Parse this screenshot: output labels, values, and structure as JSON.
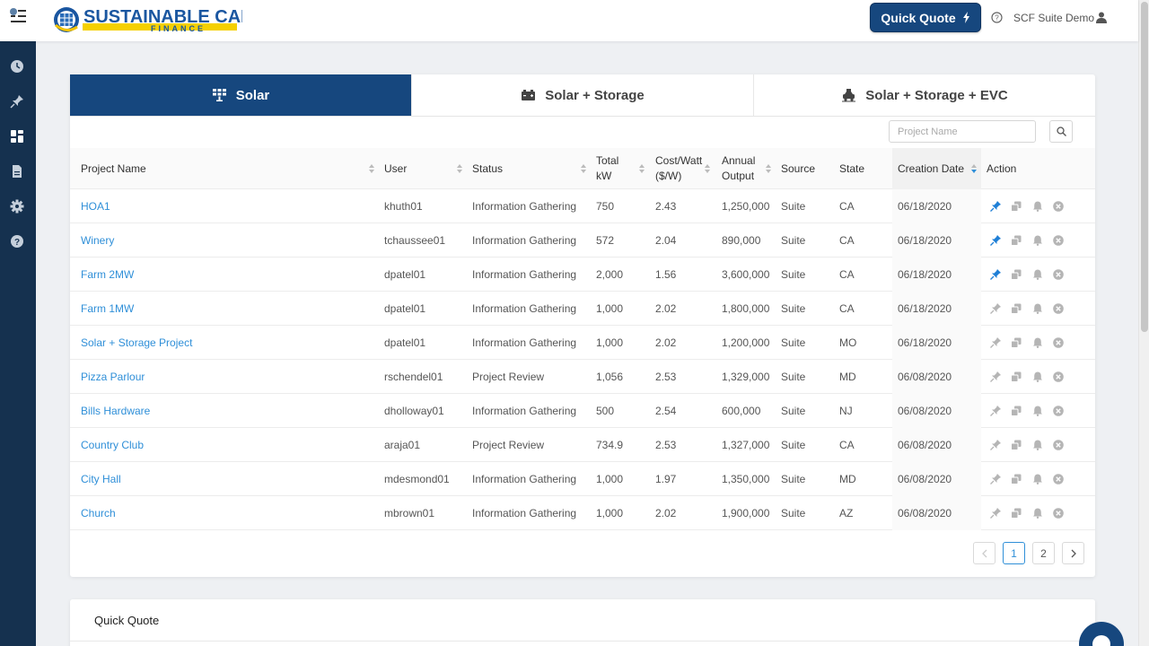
{
  "header": {
    "logo_text": "SUSTAINABLE CAPITAL",
    "logo_subtext": "FINANCE",
    "quick_quote_label": "Quick Quote",
    "user_name": "SCF Suite Demo"
  },
  "sidebar": {
    "items": [
      {
        "icon": "clock-icon"
      },
      {
        "icon": "pin-icon"
      },
      {
        "icon": "dashboard-icon"
      },
      {
        "icon": "document-icon"
      },
      {
        "icon": "gear-icon"
      },
      {
        "icon": "help-icon"
      }
    ]
  },
  "tabs": [
    {
      "label": "Solar",
      "icon": "solar-panel-icon",
      "active": true
    },
    {
      "label": "Solar + Storage",
      "icon": "battery-icon",
      "active": false
    },
    {
      "label": "Solar + Storage + EVC",
      "icon": "ev-charger-icon",
      "active": false
    }
  ],
  "search": {
    "placeholder": "Project Name"
  },
  "table": {
    "headers": {
      "project": "Project Name",
      "user": "User",
      "status": "Status",
      "kw_1": "Total",
      "kw_2": "kW",
      "cost_1": "Cost/Watt",
      "cost_2": "($/W)",
      "output_1": "Annual",
      "output_2": "Output",
      "source": "Source",
      "state": "State",
      "date": "Creation Date",
      "action": "Action"
    },
    "rows": [
      {
        "project": "HOA1",
        "user": "khuth01",
        "status": "Information Gathering",
        "kw": "750",
        "cost": "2.43",
        "output": "1,250,000",
        "source": "Suite",
        "state": "CA",
        "date": "06/18/2020",
        "pinned": true
      },
      {
        "project": "Winery",
        "user": "tchaussee01",
        "status": "Information Gathering",
        "kw": "572",
        "cost": "2.04",
        "output": "890,000",
        "source": "Suite",
        "state": "CA",
        "date": "06/18/2020",
        "pinned": true
      },
      {
        "project": "Farm 2MW",
        "user": "dpatel01",
        "status": "Information Gathering",
        "kw": "2,000",
        "cost": "1.56",
        "output": "3,600,000",
        "source": "Suite",
        "state": "CA",
        "date": "06/18/2020",
        "pinned": true
      },
      {
        "project": "Farm 1MW",
        "user": "dpatel01",
        "status": "Information Gathering",
        "kw": "1,000",
        "cost": "2.02",
        "output": "1,800,000",
        "source": "Suite",
        "state": "CA",
        "date": "06/18/2020",
        "pinned": false
      },
      {
        "project": "Solar + Storage Project",
        "user": "dpatel01",
        "status": "Information Gathering",
        "kw": "1,000",
        "cost": "2.02",
        "output": "1,200,000",
        "source": "Suite",
        "state": "MO",
        "date": "06/18/2020",
        "pinned": false
      },
      {
        "project": "Pizza Parlour",
        "user": "rschendel01",
        "status": "Project Review",
        "kw": "1,056",
        "cost": "2.53",
        "output": "1,329,000",
        "source": "Suite",
        "state": "MD",
        "date": "06/08/2020",
        "pinned": false
      },
      {
        "project": "Bills Hardware",
        "user": "dholloway01",
        "status": "Information Gathering",
        "kw": "500",
        "cost": "2.54",
        "output": "600,000",
        "source": "Suite",
        "state": "NJ",
        "date": "06/08/2020",
        "pinned": false
      },
      {
        "project": "Country Club",
        "user": "araja01",
        "status": "Project Review",
        "kw": "734.9",
        "cost": "2.53",
        "output": "1,327,000",
        "source": "Suite",
        "state": "CA",
        "date": "06/08/2020",
        "pinned": false
      },
      {
        "project": "City Hall",
        "user": "mdesmond01",
        "status": "Information Gathering",
        "kw": "1,000",
        "cost": "1.97",
        "output": "1,350,000",
        "source": "Suite",
        "state": "MD",
        "date": "06/08/2020",
        "pinned": false
      },
      {
        "project": "Church",
        "user": "mbrown01",
        "status": "Information Gathering",
        "kw": "1,000",
        "cost": "2.02",
        "output": "1,900,000",
        "source": "Suite",
        "state": "AZ",
        "date": "06/08/2020",
        "pinned": false
      }
    ]
  },
  "pagination": {
    "pages": [
      "1",
      "2"
    ],
    "current": "1"
  },
  "quick_quote_section": {
    "title": "Quick Quote"
  },
  "colors": {
    "brand": "#16477e",
    "link": "#2f8fd8",
    "pinned": "#1f7fd6",
    "icon_gray": "#b5b5b5",
    "sidebar": "#15314f"
  }
}
